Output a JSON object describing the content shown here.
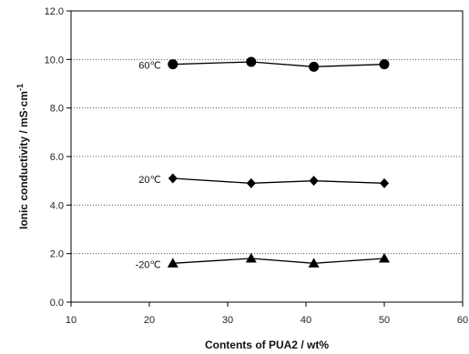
{
  "chart_data": {
    "type": "line",
    "title": "",
    "xlabel": "Contents of PUA2 / wt%",
    "ylabel": "Ionic conductivity / mS·cm",
    "ylabel_superscript": "-1",
    "xlim": [
      10,
      60
    ],
    "ylim": [
      0.0,
      12.0
    ],
    "x_ticks": [
      10,
      20,
      30,
      40,
      50,
      60
    ],
    "x_tick_labels": [
      "10",
      "20",
      "30",
      "40",
      "50",
      "60"
    ],
    "y_ticks": [
      0,
      2,
      4,
      6,
      8,
      10,
      12
    ],
    "y_tick_labels": [
      "0.0",
      "2.0",
      "4.0",
      "6.0",
      "8.0",
      "10.0",
      "12.0"
    ],
    "grid": "horizontal dotted",
    "series": [
      {
        "name": "60℃",
        "marker": "circle",
        "x": [
          23,
          33,
          41,
          50
        ],
        "values": [
          9.8,
          9.9,
          9.7,
          9.8
        ]
      },
      {
        "name": "20℃",
        "marker": "diamond",
        "x": [
          23,
          33,
          41,
          50
        ],
        "values": [
          5.1,
          4.9,
          5.0,
          4.9
        ]
      },
      {
        "name": "-20℃",
        "marker": "triangle",
        "x": [
          23,
          33,
          41,
          50
        ],
        "values": [
          1.6,
          1.8,
          1.6,
          1.8
        ]
      }
    ],
    "colors": {
      "series": "#000000",
      "axis": "#000000",
      "grid": "#555555"
    }
  }
}
